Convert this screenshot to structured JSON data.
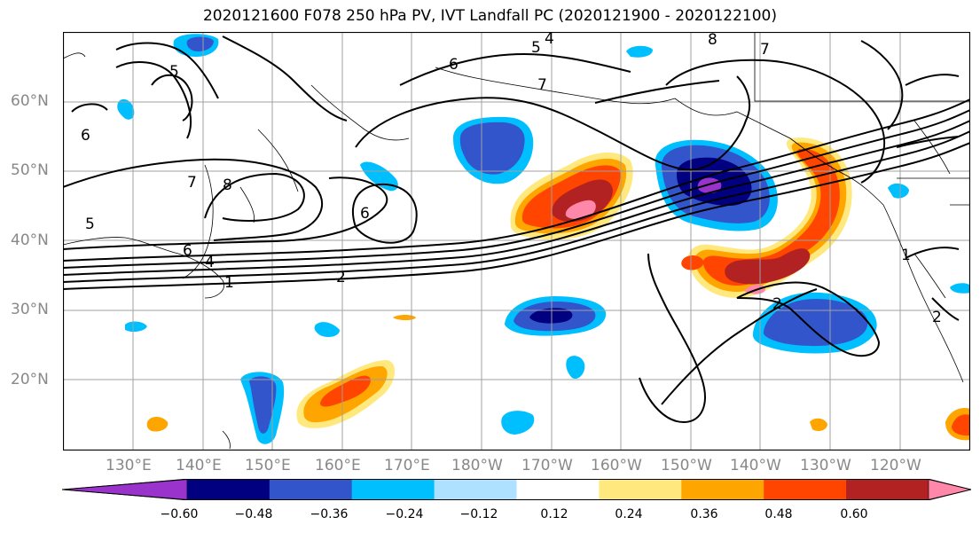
{
  "title": "2020121600 F078 250 hPa PV, IVT Landfall PC (2020121900 - 2020122100)",
  "lat_labels": [
    "60°N",
    "50°N",
    "40°N",
    "30°N",
    "20°N"
  ],
  "lon_labels": [
    "130°E",
    "140°E",
    "150°E",
    "160°E",
    "170°E",
    "180°W",
    "170°W",
    "160°W",
    "150°W",
    "140°W",
    "130°W",
    "120°W"
  ],
  "contour_labels": [
    "1",
    "2",
    "2",
    "4",
    "5",
    "5",
    "6",
    "6",
    "6",
    "7",
    "7",
    "8",
    "8",
    "1",
    "2",
    "4",
    "5",
    "6",
    "7"
  ],
  "colorbar": {
    "colors": [
      "#9933cc",
      "#000080",
      "#3355cc",
      "#00bfff",
      "#aee0ff",
      "#ffffff",
      "#ffe97f",
      "#ffa500",
      "#ff4500",
      "#b22222",
      "#ff88aa"
    ],
    "ticks": [
      "−0.60",
      "−0.48",
      "−0.36",
      "−0.24",
      "−0.12",
      "0.12",
      "0.24",
      "0.36",
      "0.48",
      "0.60"
    ]
  }
}
